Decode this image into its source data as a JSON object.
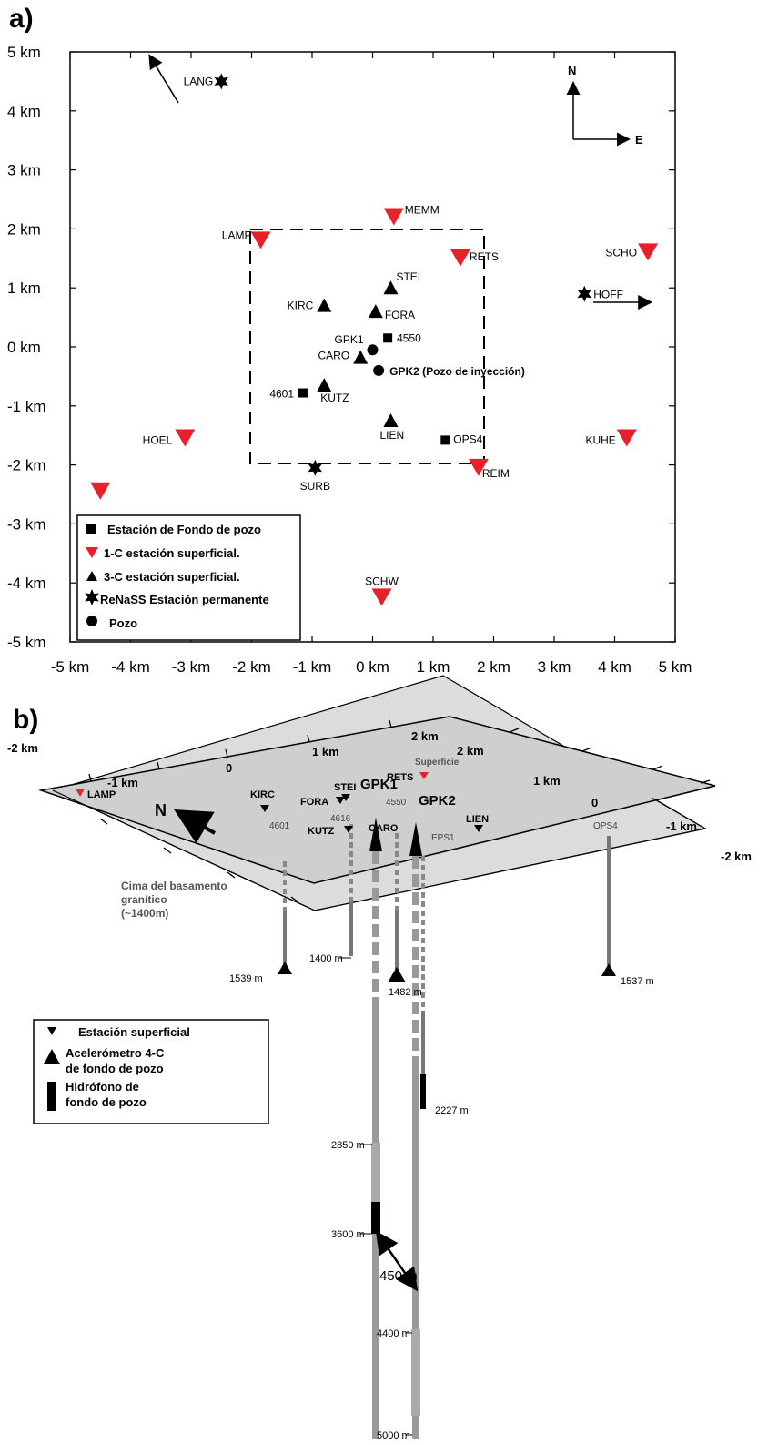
{
  "panel_a": {
    "label": "a)",
    "x_ticks": [
      "-5 km",
      "-4 km",
      "-3 km",
      "-2 km",
      "-1 km",
      "0 km",
      "1 km",
      "2 km",
      "3 km",
      "4 km",
      "5 km"
    ],
    "y_ticks": [
      "5 km",
      "4 km",
      "3 km",
      "2 km",
      "1 km",
      "0 km",
      "-1 km",
      "-2 km",
      "-3 km",
      "-4 km",
      "-5 km"
    ],
    "compass": {
      "north": "N",
      "east": "E"
    },
    "stations_1c": [
      {
        "name": "MEMM",
        "x": 0.35,
        "y": 2.2
      },
      {
        "name": "LAMP",
        "x": -1.85,
        "y": 1.8
      },
      {
        "name": "RETS",
        "x": 1.45,
        "y": 1.5
      },
      {
        "name": "SCHO",
        "x": 4.55,
        "y": 1.6
      },
      {
        "name": "HOEL",
        "x": -3.1,
        "y": -1.55
      },
      {
        "name": "KUHE",
        "x": 4.2,
        "y": -1.55
      },
      {
        "name": "REIM",
        "x": 1.75,
        "y": -2.05
      },
      {
        "name": "SCHW",
        "x": 0.15,
        "y": -4.25
      },
      {
        "name": "",
        "x": -4.5,
        "y": -2.45
      }
    ],
    "stations_3c": [
      {
        "name": "STEI",
        "x": 0.3,
        "y": 1.0
      },
      {
        "name": "KIRC",
        "x": -0.8,
        "y": 0.7
      },
      {
        "name": "FORA",
        "x": 0.05,
        "y": 0.6
      },
      {
        "name": "CARO",
        "x": -0.2,
        "y": -0.18
      },
      {
        "name": "KUTZ",
        "x": -0.8,
        "y": -0.65
      },
      {
        "name": "LIEN",
        "x": 0.3,
        "y": -1.25
      }
    ],
    "downhole": [
      {
        "name": "4550",
        "x": 0.25,
        "y": 0.15
      },
      {
        "name": "4601",
        "x": -1.15,
        "y": -0.78
      },
      {
        "name": "OPS4",
        "x": 1.2,
        "y": -1.58
      }
    ],
    "permanent": [
      {
        "name": "LANG",
        "x": -2.5,
        "y": 4.5
      },
      {
        "name": "HOFF",
        "x": 3.5,
        "y": 0.9
      },
      {
        "name": "SURB",
        "x": -0.95,
        "y": -2.05
      }
    ],
    "wells": [
      {
        "name": "GPK1",
        "x": 0.0,
        "y": -0.05
      },
      {
        "name": "GPK2 (Pozo de inyección)",
        "x": 0.1,
        "y": -0.4
      }
    ],
    "legend": [
      "Estación de Fondo de pozo",
      "1-C estación superficial.",
      "3-C estación superficial.",
      "ReNaSS Estación permanente",
      "Pozo"
    ],
    "colors": {
      "surface_1c": "#e8202a",
      "marker": "#000000"
    }
  },
  "panel_b": {
    "label": "b)",
    "top_plane_ticks": [
      "2 km",
      "1 km",
      "0",
      "-1 km",
      "-2 km"
    ],
    "right_plane_ticks": [
      "2 km",
      "1 km",
      "0",
      "-1 km",
      "-2 km"
    ],
    "surface_label": "Superficie",
    "north_label": "N",
    "granite_label": [
      "Cima del basamento",
      "granítico",
      "(~1400m)"
    ],
    "stations": [
      "LAMP",
      "KIRC",
      "STEI",
      "FORA",
      "KUTZ",
      "CARO",
      "4616",
      "4550",
      "EPS1",
      "LIEN",
      "OPS4",
      "4601",
      "RETS"
    ],
    "wells": [
      "GPK1",
      "GPK2"
    ],
    "depths": [
      "1400 m",
      "1482 m",
      "1539 m",
      "1537 m",
      "2227 m",
      "2850 m",
      "3600 m",
      "4400 m",
      "5000 m"
    ],
    "distance_label": "450 m",
    "legend": [
      "Estación superficial",
      "Acelerómetro 4-C",
      "de fondo de pozo",
      "Hidrófono de",
      "fondo de pozo"
    ]
  }
}
